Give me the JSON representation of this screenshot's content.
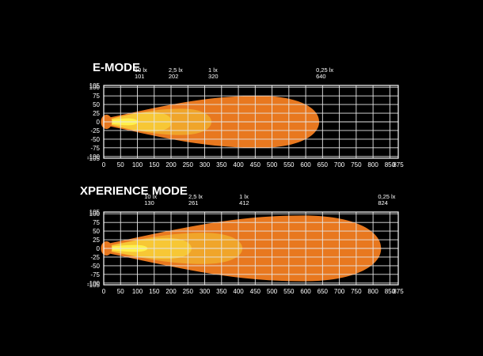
{
  "chart_data": [
    {
      "type": "area",
      "title": "E-MODE",
      "xlabel": "",
      "ylabel": "",
      "xlim": [
        0,
        875
      ],
      "ylim": [
        -105,
        105
      ],
      "x_ticks": [
        0,
        50,
        100,
        150,
        200,
        250,
        300,
        350,
        400,
        450,
        500,
        550,
        600,
        650,
        700,
        750,
        800,
        850,
        875
      ],
      "y_ticks": [
        105,
        100,
        75,
        50,
        25,
        0,
        -25,
        -50,
        -75,
        -100,
        -105
      ],
      "grid": true,
      "series": [
        {
          "name": "0,25 lx",
          "reach": 640,
          "half_width": 75,
          "color": "#e8781f"
        },
        {
          "name": "1 lx",
          "reach": 320,
          "half_width": 38,
          "color": "#f0a52a"
        },
        {
          "name": "2,5 lx",
          "reach": 202,
          "half_width": 28,
          "color": "#f7c735"
        },
        {
          "name": "10 lx",
          "reach": 101,
          "half_width": 10,
          "color": "#fff04a"
        }
      ],
      "annotations": [
        {
          "label": "10 lx",
          "value": "101",
          "x": 101
        },
        {
          "label": "2,5 lx",
          "value": "202",
          "x": 202
        },
        {
          "label": "1 lx",
          "value": "320",
          "x": 320
        },
        {
          "label": "0,25 lx",
          "value": "640",
          "x": 640
        }
      ]
    },
    {
      "type": "area",
      "title": "XPERIENCE MODE",
      "xlabel": "",
      "ylabel": "",
      "xlim": [
        0,
        875
      ],
      "ylim": [
        -105,
        105
      ],
      "x_ticks": [
        0,
        50,
        100,
        150,
        200,
        250,
        300,
        350,
        400,
        450,
        500,
        550,
        600,
        650,
        700,
        750,
        800,
        850,
        875
      ],
      "y_ticks": [
        105,
        100,
        75,
        50,
        25,
        0,
        -25,
        -50,
        -75,
        -100,
        -105
      ],
      "grid": true,
      "series": [
        {
          "name": "0,25 lx",
          "reach": 824,
          "half_width": 95,
          "color": "#e8781f"
        },
        {
          "name": "1 lx",
          "reach": 412,
          "half_width": 45,
          "color": "#f0a52a"
        },
        {
          "name": "2,5 lx",
          "reach": 261,
          "half_width": 30,
          "color": "#f7c735"
        },
        {
          "name": "10 lx",
          "reach": 130,
          "half_width": 10,
          "color": "#fff04a"
        }
      ],
      "annotations": [
        {
          "label": "10 lx",
          "value": "130",
          "x": 130
        },
        {
          "label": "2,5 lx",
          "value": "261",
          "x": 261
        },
        {
          "label": "1 lx",
          "value": "412",
          "x": 412
        },
        {
          "label": "0,25 lx",
          "value": "824",
          "x": 824
        }
      ]
    }
  ]
}
